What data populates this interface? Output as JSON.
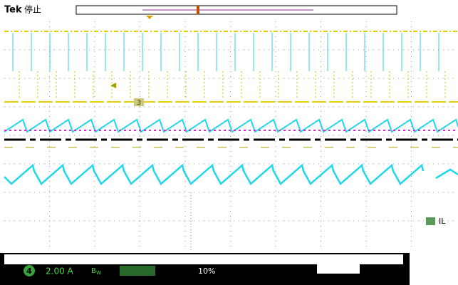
{
  "header": {
    "brand": "Tek",
    "status": "停止"
  },
  "markers": {
    "ref": "3",
    "channel_label": "IL"
  },
  "footer": {
    "channel": "4",
    "scale": "2.00 A",
    "bandwidth": "B",
    "bw_sub": "W",
    "percent": "10%"
  }
}
